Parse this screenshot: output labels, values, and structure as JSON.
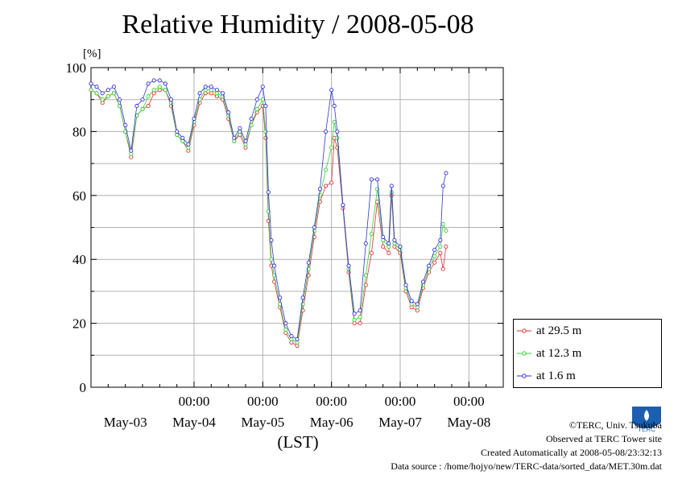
{
  "title": "Relative Humidity / 2008-05-08",
  "credits": {
    "copyright": "©TERC, Univ. Tsukuba",
    "site": "Observed at TERC Tower site",
    "created": "Created Automatically at 2008-05-08/23:32:13",
    "source": "Data source : /home/hojyo/new/TERC-data/sorted_data/MET.30m.dat"
  },
  "logo_text": "TERC",
  "chart_data": {
    "type": "scatter",
    "title": "Relative Humidity / 2008-05-08",
    "ylabel": "[%]",
    "xlabel": "(LST)",
    "ylim": [
      0,
      100
    ],
    "xlim": [
      0,
      144
    ],
    "x_unit": "hours from 2008-05-02 12:00 LST",
    "yticks": [
      0,
      20,
      40,
      60,
      80,
      100
    ],
    "xticks_time": [
      {
        "x": 36,
        "label": "00:00"
      },
      {
        "x": 60,
        "label": "00:00"
      },
      {
        "x": 84,
        "label": "00:00"
      },
      {
        "x": 108,
        "label": "00:00"
      },
      {
        "x": 132,
        "label": "00:00"
      }
    ],
    "xticks_date": [
      {
        "x": 12,
        "label": "May-03"
      },
      {
        "x": 36,
        "label": "May-04"
      },
      {
        "x": 60,
        "label": "May-05"
      },
      {
        "x": 84,
        "label": "May-06"
      },
      {
        "x": 108,
        "label": "May-07"
      },
      {
        "x": 132,
        "label": "May-08"
      }
    ],
    "grid": true,
    "legend_position": "right-bottom",
    "series": [
      {
        "name": "at 29.5 m",
        "color": "#e03030",
        "points": [
          [
            0,
            93
          ],
          [
            2,
            92
          ],
          [
            4,
            89
          ],
          [
            6,
            91
          ],
          [
            8,
            92
          ],
          [
            10,
            88
          ],
          [
            12,
            80
          ],
          [
            14,
            72
          ],
          [
            16,
            85
          ],
          [
            18,
            87
          ],
          [
            20,
            88
          ],
          [
            22,
            92
          ],
          [
            24,
            93
          ],
          [
            26,
            93
          ],
          [
            28,
            88
          ],
          [
            30,
            79
          ],
          [
            32,
            77
          ],
          [
            34,
            74
          ],
          [
            36,
            82
          ],
          [
            38,
            89
          ],
          [
            40,
            92
          ],
          [
            42,
            92
          ],
          [
            44,
            91
          ],
          [
            46,
            90
          ],
          [
            48,
            84
          ],
          [
            50,
            77
          ],
          [
            52,
            79
          ],
          [
            54,
            75
          ],
          [
            56,
            82
          ],
          [
            58,
            86
          ],
          [
            60,
            88
          ],
          [
            61,
            78
          ],
          [
            62,
            52
          ],
          [
            63,
            38
          ],
          [
            64,
            33
          ],
          [
            66,
            25
          ],
          [
            68,
            17
          ],
          [
            70,
            14
          ],
          [
            72,
            13
          ],
          [
            74,
            24
          ],
          [
            76,
            35
          ],
          [
            78,
            47
          ],
          [
            80,
            58
          ],
          [
            82,
            63
          ],
          [
            84,
            64
          ],
          [
            85,
            78
          ],
          [
            86,
            75
          ],
          [
            88,
            56
          ],
          [
            90,
            36
          ],
          [
            92,
            20
          ],
          [
            94,
            20
          ],
          [
            96,
            32
          ],
          [
            98,
            42
          ],
          [
            100,
            58
          ],
          [
            102,
            44
          ],
          [
            104,
            42
          ],
          [
            105,
            60
          ],
          [
            106,
            44
          ],
          [
            108,
            42
          ],
          [
            110,
            30
          ],
          [
            112,
            25
          ],
          [
            114,
            24
          ],
          [
            116,
            31
          ],
          [
            118,
            36
          ],
          [
            120,
            39
          ],
          [
            122,
            42
          ],
          [
            123,
            37
          ],
          [
            124,
            44
          ]
        ]
      },
      {
        "name": "at 12.3 m",
        "color": "#30d030",
        "points": [
          [
            0,
            93
          ],
          [
            2,
            92
          ],
          [
            4,
            90
          ],
          [
            6,
            91
          ],
          [
            8,
            92
          ],
          [
            10,
            88
          ],
          [
            12,
            80
          ],
          [
            14,
            73
          ],
          [
            16,
            85
          ],
          [
            18,
            87
          ],
          [
            20,
            91
          ],
          [
            22,
            93
          ],
          [
            24,
            94
          ],
          [
            26,
            93
          ],
          [
            28,
            89
          ],
          [
            30,
            79
          ],
          [
            32,
            77
          ],
          [
            34,
            75
          ],
          [
            36,
            83
          ],
          [
            38,
            90
          ],
          [
            40,
            93
          ],
          [
            42,
            93
          ],
          [
            44,
            92
          ],
          [
            46,
            91
          ],
          [
            48,
            85
          ],
          [
            50,
            77
          ],
          [
            52,
            80
          ],
          [
            54,
            76
          ],
          [
            56,
            82
          ],
          [
            58,
            87
          ],
          [
            60,
            90
          ],
          [
            61,
            80
          ],
          [
            62,
            55
          ],
          [
            63,
            40
          ],
          [
            64,
            35
          ],
          [
            66,
            26
          ],
          [
            68,
            18
          ],
          [
            70,
            15
          ],
          [
            72,
            14
          ],
          [
            74,
            26
          ],
          [
            76,
            37
          ],
          [
            78,
            49
          ],
          [
            80,
            60
          ],
          [
            82,
            68
          ],
          [
            84,
            75
          ],
          [
            85,
            83
          ],
          [
            86,
            78
          ],
          [
            88,
            57
          ],
          [
            90,
            37
          ],
          [
            92,
            21
          ],
          [
            94,
            22
          ],
          [
            96,
            35
          ],
          [
            98,
            48
          ],
          [
            100,
            62
          ],
          [
            102,
            46
          ],
          [
            104,
            44
          ],
          [
            105,
            61
          ],
          [
            106,
            45
          ],
          [
            108,
            43
          ],
          [
            110,
            31
          ],
          [
            112,
            26
          ],
          [
            114,
            25
          ],
          [
            116,
            32
          ],
          [
            118,
            37
          ],
          [
            120,
            41
          ],
          [
            122,
            44
          ],
          [
            123,
            51
          ],
          [
            124,
            49
          ]
        ]
      },
      {
        "name": "at 1.6 m",
        "color": "#3030e0",
        "points": [
          [
            0,
            95
          ],
          [
            2,
            94
          ],
          [
            4,
            92
          ],
          [
            6,
            93
          ],
          [
            8,
            94
          ],
          [
            10,
            90
          ],
          [
            12,
            82
          ],
          [
            14,
            74
          ],
          [
            16,
            88
          ],
          [
            18,
            90
          ],
          [
            20,
            95
          ],
          [
            22,
            96
          ],
          [
            24,
            96
          ],
          [
            26,
            95
          ],
          [
            28,
            90
          ],
          [
            30,
            80
          ],
          [
            32,
            78
          ],
          [
            34,
            76
          ],
          [
            36,
            84
          ],
          [
            38,
            92
          ],
          [
            40,
            94
          ],
          [
            42,
            94
          ],
          [
            44,
            93
          ],
          [
            46,
            92
          ],
          [
            48,
            86
          ],
          [
            50,
            78
          ],
          [
            52,
            81
          ],
          [
            54,
            77
          ],
          [
            56,
            84
          ],
          [
            58,
            90
          ],
          [
            60,
            94
          ],
          [
            61,
            88
          ],
          [
            62,
            61
          ],
          [
            63,
            46
          ],
          [
            64,
            38
          ],
          [
            66,
            28
          ],
          [
            68,
            20
          ],
          [
            70,
            16
          ],
          [
            72,
            15
          ],
          [
            74,
            28
          ],
          [
            76,
            39
          ],
          [
            78,
            50
          ],
          [
            80,
            62
          ],
          [
            82,
            80
          ],
          [
            84,
            93
          ],
          [
            85,
            88
          ],
          [
            86,
            80
          ],
          [
            88,
            57
          ],
          [
            90,
            38
          ],
          [
            92,
            23
          ],
          [
            94,
            24
          ],
          [
            96,
            45
          ],
          [
            98,
            65
          ],
          [
            100,
            65
          ],
          [
            102,
            47
          ],
          [
            104,
            45
          ],
          [
            105,
            63
          ],
          [
            106,
            46
          ],
          [
            108,
            44
          ],
          [
            110,
            32
          ],
          [
            112,
            27
          ],
          [
            114,
            26
          ],
          [
            116,
            33
          ],
          [
            118,
            38
          ],
          [
            120,
            43
          ],
          [
            122,
            46
          ],
          [
            123,
            63
          ],
          [
            124,
            67
          ]
        ]
      }
    ]
  }
}
